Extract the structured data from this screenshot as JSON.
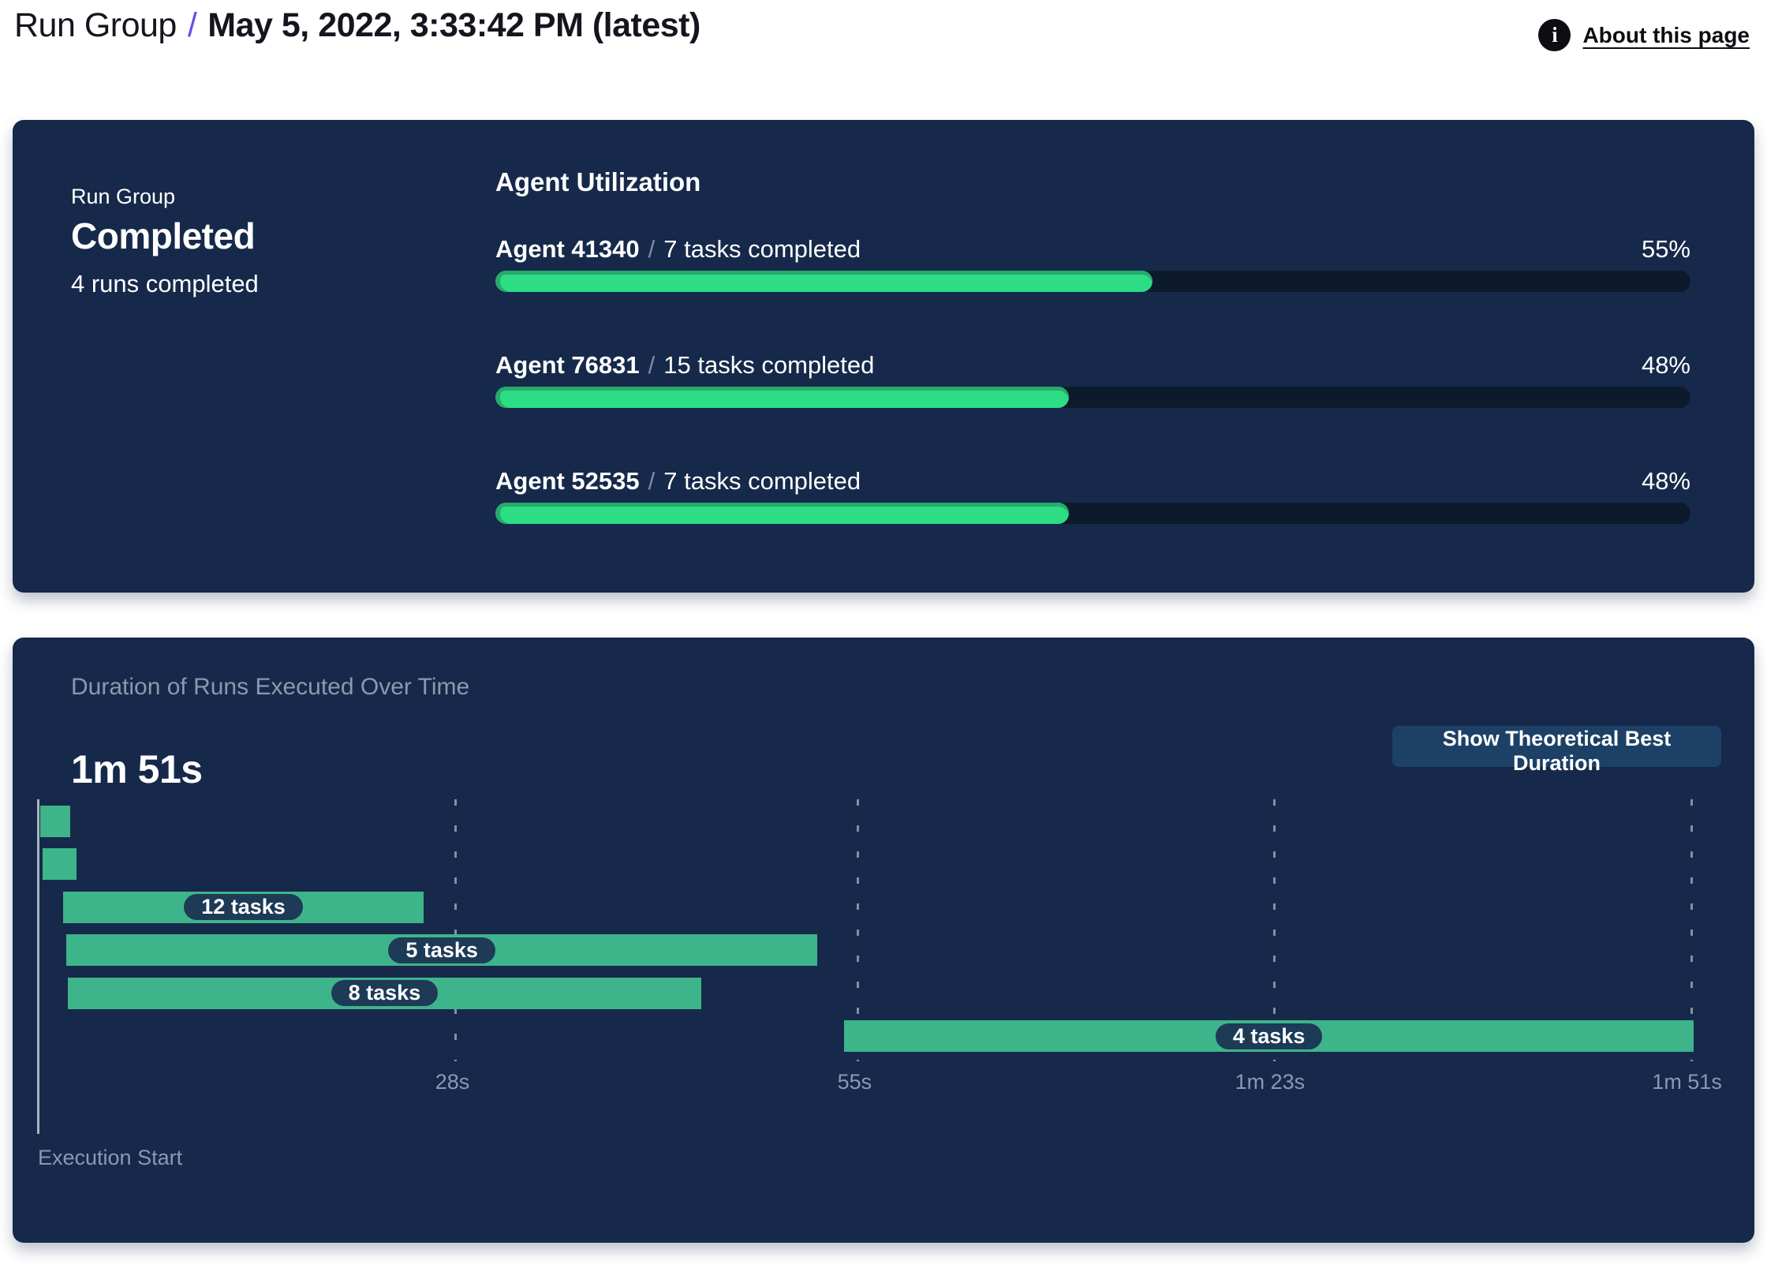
{
  "header": {
    "breadcrumb_root": "Run Group",
    "separator": "/",
    "title": "May 5, 2022, 3:33:42 PM (latest)",
    "about_label": "About this page",
    "info_icon": "i"
  },
  "run_group_panel": {
    "label": "Run Group",
    "status": "Completed",
    "runs_summary": "4 runs completed",
    "utilization": {
      "title": "Agent Utilization",
      "agents": [
        {
          "name": "Agent 41340",
          "separator": "/",
          "tasks": "7 tasks completed",
          "percent": "55%",
          "percent_value": 55
        },
        {
          "name": "Agent 76831",
          "separator": "/",
          "tasks": "15 tasks completed",
          "percent": "48%",
          "percent_value": 48
        },
        {
          "name": "Agent 52535",
          "separator": "/",
          "tasks": "7 tasks completed",
          "percent": "48%",
          "percent_value": 48
        }
      ]
    }
  },
  "duration_panel": {
    "subtitle": "Duration of Runs Executed Over Time",
    "total_duration": "1m 51s",
    "button_label": "Show Theoretical Best Duration",
    "axis_label": "Execution Start"
  },
  "chart_data": {
    "type": "gantt",
    "title": "Duration of Runs Executed Over Time",
    "xlabel": "Execution Start",
    "x_unit": "seconds",
    "xlim": [
      0,
      111
    ],
    "grid": "dashed-vertical",
    "legend": "none",
    "ticks": [
      {
        "label": "28s",
        "seconds": 28
      },
      {
        "label": "55s",
        "seconds": 55
      },
      {
        "label": "1m 23s",
        "seconds": 83
      },
      {
        "label": "1m 51s",
        "seconds": 111
      }
    ],
    "runs": [
      {
        "start_s": 0.2,
        "end_s": 2.2,
        "label": null
      },
      {
        "start_s": 0.35,
        "end_s": 2.65,
        "label": null
      },
      {
        "start_s": 1.75,
        "end_s": 25.95,
        "label": "12 tasks"
      },
      {
        "start_s": 1.95,
        "end_s": 52.4,
        "label": "5 tasks"
      },
      {
        "start_s": 2.05,
        "end_s": 44.6,
        "label": "8 tasks"
      },
      {
        "start_s": 54.2,
        "end_s": 111.2,
        "label": "4 tasks"
      }
    ]
  },
  "colors": {
    "panel_bg": "#16294a",
    "progress_fill": "#2cdd85",
    "progress_fill_edge": "#27aa6c",
    "progress_track": "#0c1a2b",
    "gantt_bar": "#3eb48a",
    "badge_bg": "#1d3a57",
    "button_bg": "#1d4066",
    "accent_separator": "#6b4bf0",
    "muted_text": "#8b99b0",
    "panel_text": "#ffffff",
    "header_text": "#15151f"
  }
}
